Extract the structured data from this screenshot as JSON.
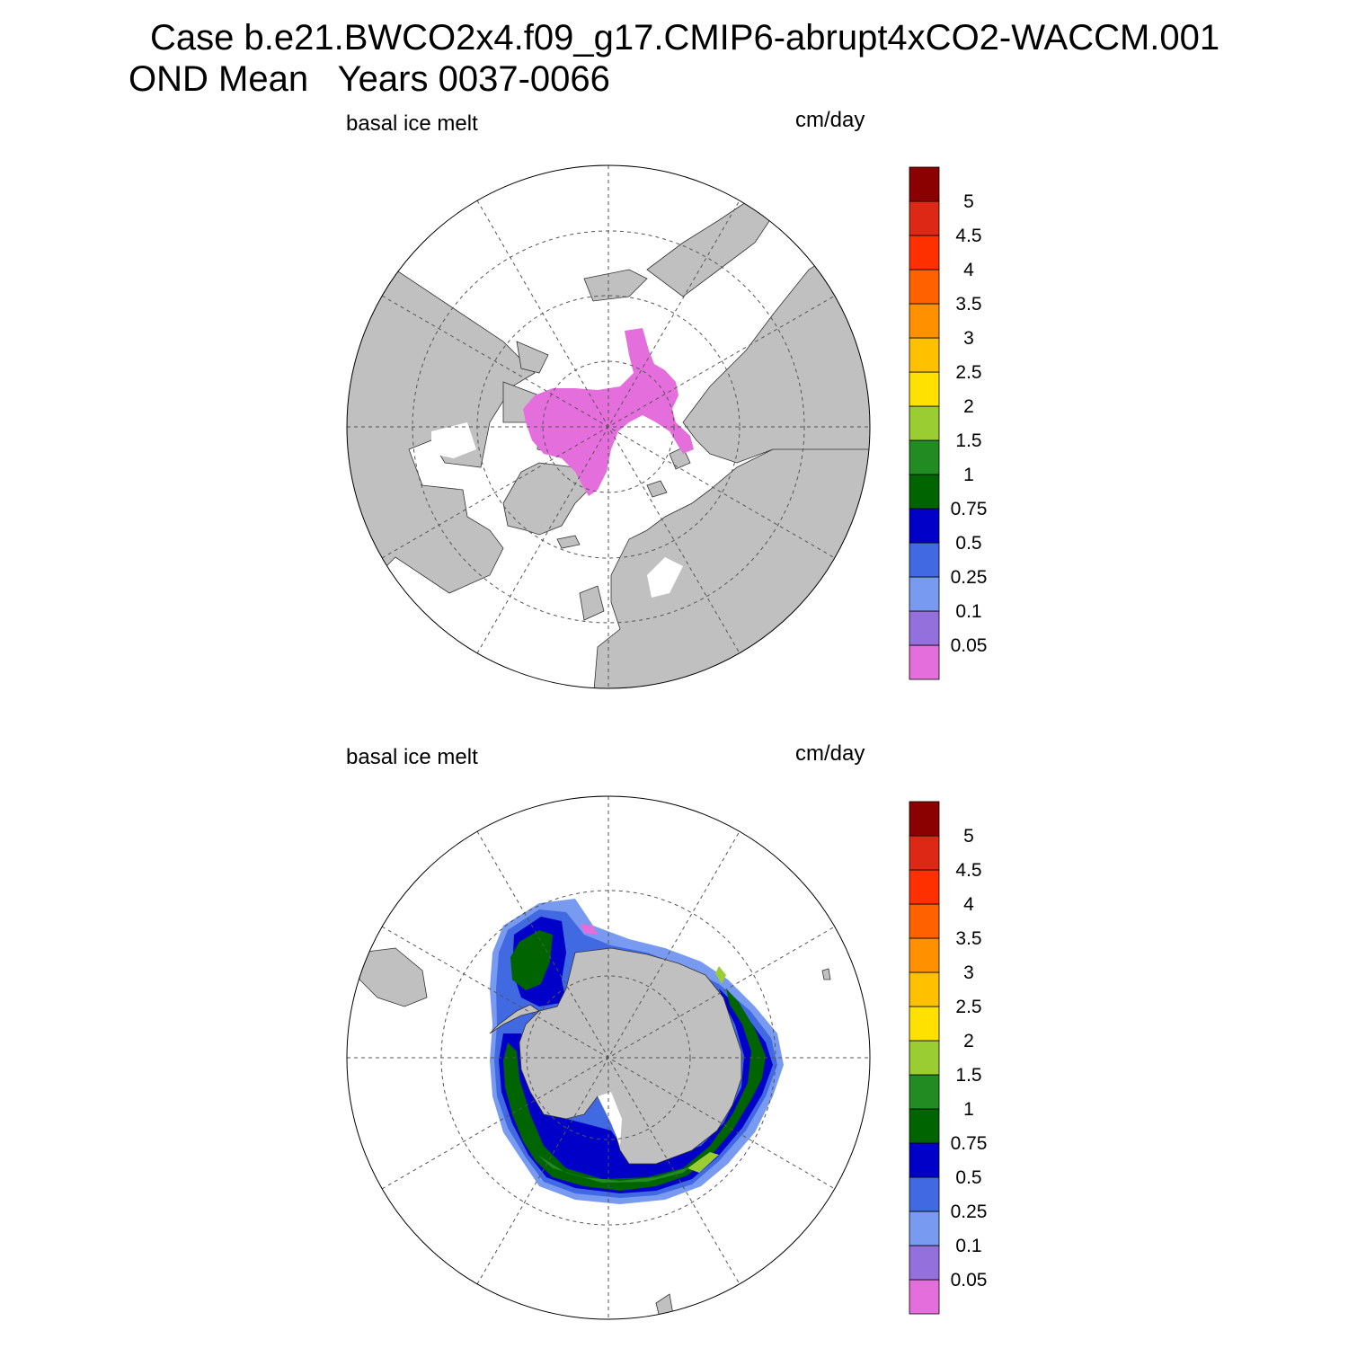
{
  "title": {
    "line1": "Case b.e21.BWCO2x4.f09_g17.CMIP6-abrupt4xCO2-WACCM.001",
    "line2": "OND Mean   Years 0037-0066"
  },
  "panels": [
    {
      "id": "north",
      "variable_label": "basal ice melt",
      "units_label": "cm/day",
      "hemisphere": "north"
    },
    {
      "id": "south",
      "variable_label": "basal ice melt",
      "units_label": "cm/day",
      "hemisphere": "south"
    }
  ],
  "colorbar": {
    "levels": [
      "0.05",
      "0.1",
      "0.25",
      "0.5",
      "0.75",
      "1",
      "1.5",
      "2",
      "2.5",
      "3",
      "3.5",
      "4",
      "4.5",
      "5"
    ],
    "colors": [
      "#e46fdc",
      "#9370db",
      "#789af0",
      "#4169e1",
      "#0000c8",
      "#006400",
      "#228b22",
      "#9acd32",
      "#ffe100",
      "#ffc000",
      "#ff9000",
      "#ff6000",
      "#ff3000",
      "#dc2815",
      "#8b0000"
    ]
  },
  "style": {
    "land": "#c0c0c0",
    "ocean": "#ffffff",
    "grid": "#555555"
  }
}
